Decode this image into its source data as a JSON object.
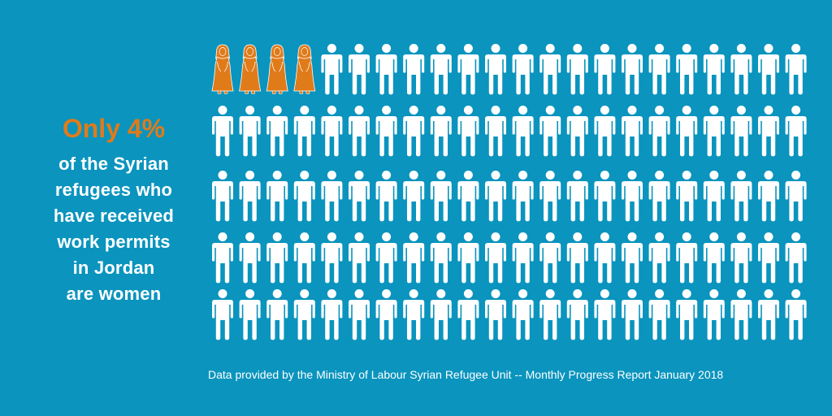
{
  "colors": {
    "background": "#0A94BE",
    "accent": "#E07B1A",
    "figure": "#FFFFFF"
  },
  "headline": "Only 4%",
  "body_lines": [
    "of the Syrian",
    "refugees who",
    "have received",
    "work permits",
    "in Jordan",
    "are women"
  ],
  "footnote": "Data provided by the Ministry of Labour Syrian Refugee Unit -- Monthly Progress Report January 2018",
  "chart_data": {
    "type": "pictogram",
    "rows": 5,
    "columns": 22,
    "women_icons": 4,
    "men_icons": 106,
    "women_share_percent": 4,
    "women_icon_name": "woman-icon",
    "men_icon_name": "man-icon",
    "women_color": "#E07B1A",
    "men_color": "#FFFFFF"
  }
}
